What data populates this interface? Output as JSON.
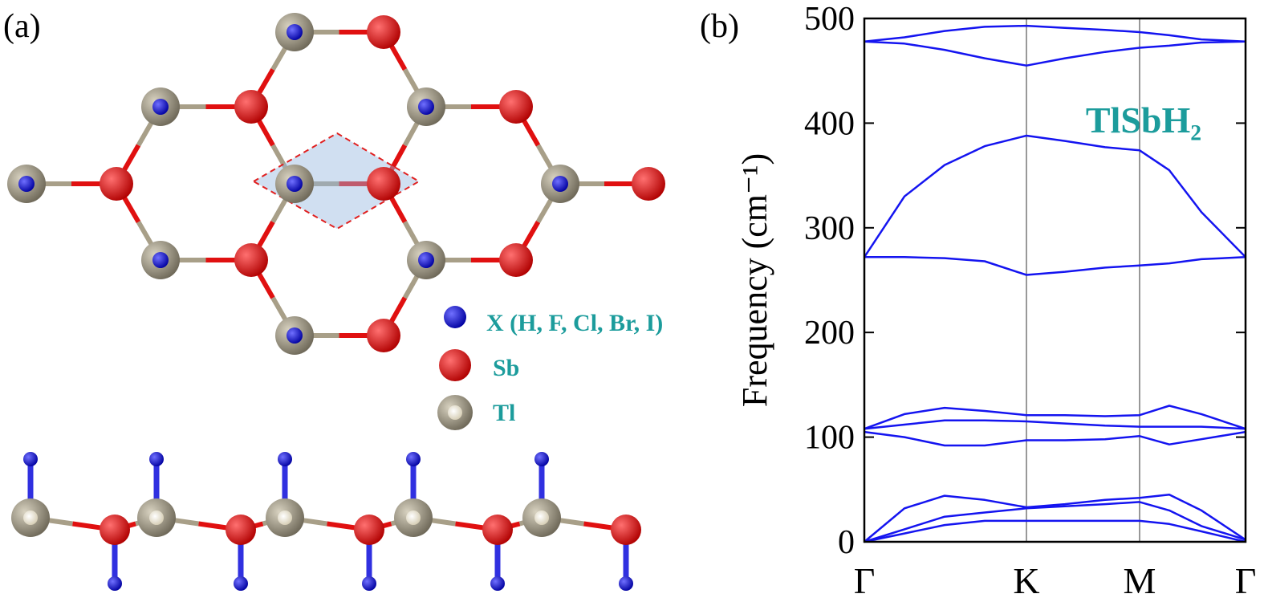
{
  "panel_a": {
    "label": "(a)",
    "legend": [
      "X (H, F, Cl, Br, I)",
      "Sb",
      "Tl"
    ]
  },
  "chart_data": {
    "type": "line",
    "panel_label": "(b)",
    "y_label": "Frequency (cm⁻¹)",
    "annotation": "TlSbH₂",
    "x": [
      0,
      50,
      100,
      150,
      202,
      250,
      300,
      343,
      380,
      420,
      475
    ],
    "xlim": [
      0,
      475
    ],
    "xticks": [
      {
        "value": 0,
        "label": "Γ"
      },
      {
        "value": 202,
        "label": "K"
      },
      {
        "value": 343,
        "label": "M"
      },
      {
        "value": 475,
        "label": "Γ"
      }
    ],
    "ylim": [
      0,
      500
    ],
    "yticks": [
      0,
      100,
      200,
      300,
      400,
      500
    ],
    "series": [
      {
        "color": "#1414f0",
        "values": [
          0,
          8,
          16,
          20,
          20,
          20,
          20,
          20,
          17,
          10,
          0
        ]
      },
      {
        "color": "#1414f0",
        "values": [
          0,
          12,
          24,
          28,
          32,
          34,
          36,
          38,
          30,
          15,
          2
        ]
      },
      {
        "color": "#1414f0",
        "values": [
          0,
          32,
          44,
          40,
          33,
          36,
          40,
          42,
          45,
          30,
          2
        ]
      },
      {
        "color": "#1414f0",
        "values": [
          105,
          100,
          92,
          92,
          97,
          97,
          98,
          101,
          93,
          98,
          105
        ]
      },
      {
        "color": "#1414f0",
        "values": [
          108,
          112,
          116,
          116,
          115,
          113,
          111,
          110,
          110,
          110,
          108
        ]
      },
      {
        "color": "#1414f0",
        "values": [
          108,
          122,
          128,
          125,
          121,
          121,
          120,
          121,
          130,
          122,
          108
        ]
      },
      {
        "color": "#1414f0",
        "values": [
          272,
          272,
          271,
          268,
          255,
          258,
          262,
          264,
          266,
          270,
          272
        ]
      },
      {
        "color": "#1414f0",
        "values": [
          272,
          330,
          360,
          378,
          388,
          383,
          377,
          374,
          355,
          315,
          272
        ]
      },
      {
        "color": "#1414f0",
        "values": [
          478,
          476,
          470,
          462,
          455,
          462,
          468,
          472,
          474,
          477,
          478
        ]
      },
      {
        "color": "#1414f0",
        "values": [
          478,
          482,
          488,
          492,
          493,
          491,
          489,
          487,
          484,
          480,
          478
        ]
      }
    ]
  }
}
